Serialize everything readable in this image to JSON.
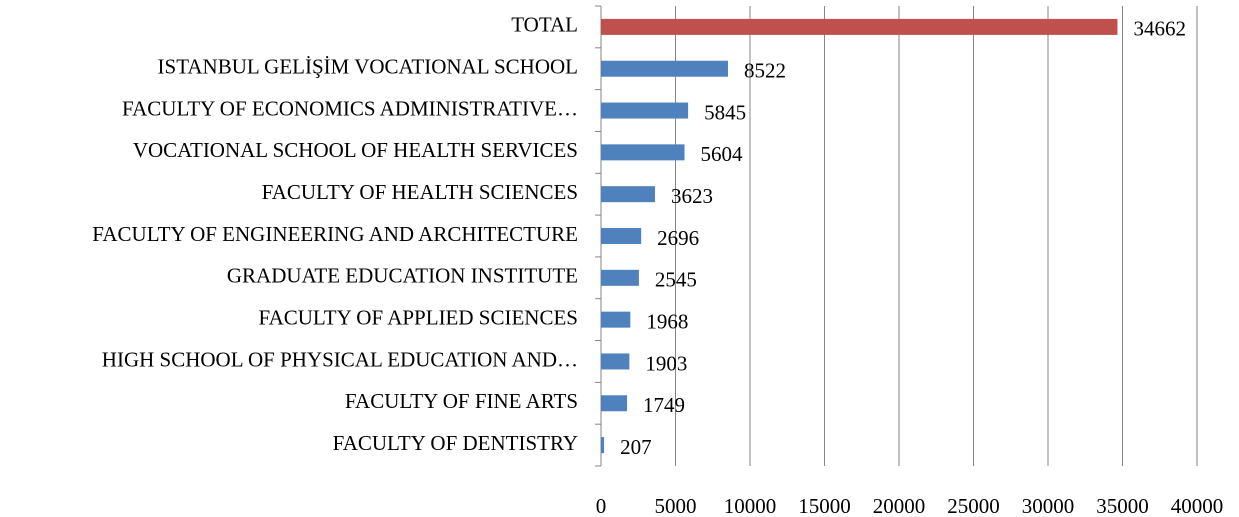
{
  "chart_data": {
    "type": "bar",
    "orientation": "horizontal",
    "categories": [
      "TOTAL",
      "ISTANBUL GELİŞİM VOCATIONAL SCHOOL",
      "FACULTY OF ECONOMICS ADMINISTRATIVE…",
      "VOCATIONAL SCHOOL OF HEALTH SERVICES",
      "FACULTY OF HEALTH SCIENCES",
      "FACULTY OF ENGINEERING AND ARCHITECTURE",
      "GRADUATE EDUCATION INSTITUTE",
      "FACULTY OF APPLIED SCIENCES",
      "HIGH SCHOOL OF PHYSICAL EDUCATION AND…",
      "FACULTY OF FINE ARTS",
      "FACULTY OF DENTISTRY"
    ],
    "values": [
      34662,
      8522,
      5845,
      5604,
      3623,
      2696,
      2545,
      1968,
      1903,
      1749,
      207
    ],
    "colors": [
      "#c0504d",
      "#4f81bd",
      "#4f81bd",
      "#4f81bd",
      "#4f81bd",
      "#4f81bd",
      "#4f81bd",
      "#4f81bd",
      "#4f81bd",
      "#4f81bd",
      "#4f81bd"
    ],
    "xlim": [
      0,
      40000
    ],
    "xticks": [
      0,
      5000,
      10000,
      15000,
      20000,
      25000,
      30000,
      35000,
      40000
    ],
    "grid": true
  }
}
